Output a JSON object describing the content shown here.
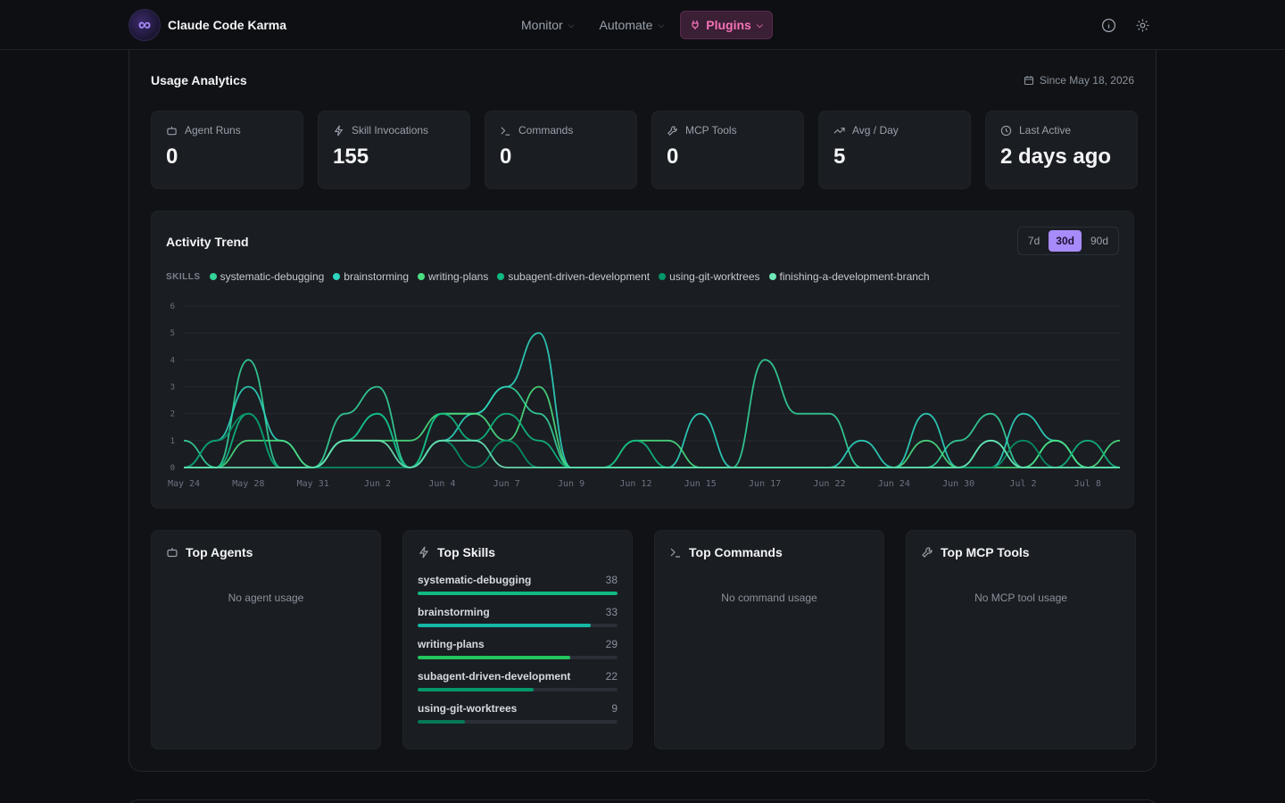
{
  "app": {
    "name": "Claude Code Karma",
    "logo_glyph": "∞"
  },
  "nav": [
    {
      "label": "Monitor",
      "active": false
    },
    {
      "label": "Automate",
      "active": false
    },
    {
      "label": "Plugins",
      "active": true
    }
  ],
  "usage": {
    "title": "Usage Analytics",
    "since": "Since May 18, 2026"
  },
  "stats": [
    {
      "label": "Agent Runs",
      "value": "0",
      "icon": "bot-icon"
    },
    {
      "label": "Skill Invocations",
      "value": "155",
      "icon": "lightning-icon"
    },
    {
      "label": "Commands",
      "value": "0",
      "icon": "terminal-icon"
    },
    {
      "label": "MCP Tools",
      "value": "0",
      "icon": "wrench-icon"
    },
    {
      "label": "Avg / Day",
      "value": "5",
      "icon": "trending-up-icon"
    },
    {
      "label": "Last Active",
      "value": "2 days ago",
      "icon": "clock-icon"
    }
  ],
  "trend": {
    "title": "Activity Trend",
    "ranges": [
      "7d",
      "30d",
      "90d"
    ],
    "active_range": "30d",
    "legend_tag": "SKILLS"
  },
  "chart_data": {
    "type": "line",
    "title": "Activity Trend",
    "x_ticks": [
      "May 24",
      "May 28",
      "May 31",
      "Jun 2",
      "Jun 4",
      "Jun 7",
      "Jun 9",
      "Jun 12",
      "Jun 15",
      "Jun 17",
      "Jun 22",
      "Jun 24",
      "Jun 30",
      "Jul 2",
      "Jul 8"
    ],
    "y_ticks": [
      0,
      1,
      2,
      3,
      4,
      5,
      6
    ],
    "ylim": [
      0,
      6
    ],
    "grid": true,
    "smooth": true,
    "series": [
      {
        "name": "systematic-debugging",
        "color": "#34d399",
        "values": [
          1,
          0,
          4,
          0,
          0,
          2,
          3,
          0,
          2,
          2,
          3,
          2,
          0,
          0,
          0,
          0,
          0,
          0,
          4,
          2,
          2,
          0,
          0,
          0,
          1,
          2,
          0,
          1,
          0,
          0
        ]
      },
      {
        "name": "brainstorming",
        "color": "#2dd4bf",
        "values": [
          0,
          1,
          3,
          1,
          0,
          1,
          2,
          0,
          1,
          2,
          3,
          5,
          0,
          0,
          0,
          0,
          2,
          0,
          0,
          0,
          0,
          1,
          0,
          2,
          0,
          0,
          2,
          1,
          0,
          0
        ]
      },
      {
        "name": "writing-plans",
        "color": "#4ade80",
        "values": [
          0,
          0,
          1,
          1,
          0,
          1,
          1,
          1,
          2,
          2,
          1,
          3,
          0,
          0,
          1,
          1,
          0,
          0,
          0,
          0,
          0,
          0,
          0,
          1,
          0,
          0,
          0,
          1,
          0,
          1
        ]
      },
      {
        "name": "subagent-driven-development",
        "color": "#10b981",
        "values": [
          0,
          0,
          2,
          0,
          0,
          1,
          2,
          0,
          2,
          1,
          2,
          1,
          0,
          0,
          1,
          0,
          0,
          0,
          0,
          0,
          0,
          0,
          0,
          0,
          0,
          1,
          0,
          0,
          1,
          0
        ]
      },
      {
        "name": "using-git-worktrees",
        "color": "#059669",
        "values": [
          0,
          1,
          2,
          0,
          0,
          0,
          0,
          0,
          1,
          0,
          1,
          0,
          0,
          0,
          0,
          0,
          0,
          0,
          0,
          0,
          0,
          0,
          0,
          0,
          0,
          0,
          1,
          0,
          0,
          0
        ]
      },
      {
        "name": "finishing-a-development-branch",
        "color": "#6ee7b7",
        "values": [
          0,
          0,
          0,
          0,
          0,
          1,
          1,
          0,
          1,
          1,
          0,
          0,
          0,
          0,
          0,
          0,
          0,
          0,
          0,
          0,
          0,
          0,
          0,
          0,
          0,
          1,
          0,
          0,
          0,
          0
        ]
      }
    ]
  },
  "top_agents": {
    "title": "Top Agents",
    "empty": "No agent usage"
  },
  "top_skills": {
    "title": "Top Skills",
    "items": [
      {
        "name": "systematic-debugging",
        "count": "38",
        "fraction": 1.0,
        "color": "#10b981"
      },
      {
        "name": "brainstorming",
        "count": "33",
        "fraction": 0.868,
        "color": "#14b8a6"
      },
      {
        "name": "writing-plans",
        "count": "29",
        "fraction": 0.763,
        "color": "#22c55e"
      },
      {
        "name": "subagent-driven-development",
        "count": "22",
        "fraction": 0.579,
        "color": "#059669"
      },
      {
        "name": "using-git-worktrees",
        "count": "9",
        "fraction": 0.237,
        "color": "#047857"
      }
    ]
  },
  "top_commands": {
    "title": "Top Commands",
    "empty": "No command usage"
  },
  "top_mcp": {
    "title": "Top MCP Tools",
    "empty": "No MCP tool usage"
  }
}
